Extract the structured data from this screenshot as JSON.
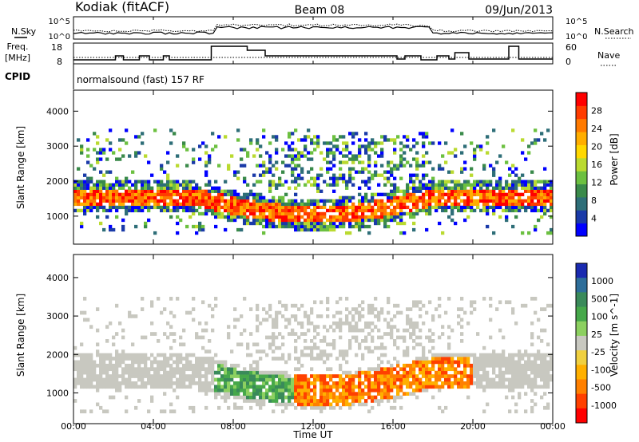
{
  "header": {
    "station": "Kodiak (fitACF)",
    "beam": "Beam 08",
    "date": "09/Jun/2013"
  },
  "top_panel": {
    "left_label": "N.Sky",
    "right_label": "N.Search",
    "left_ticks": [
      "10^5",
      "10^0"
    ],
    "right_ticks": [
      "10^5",
      "10^0"
    ]
  },
  "freq_panel": {
    "left_label_1": "Freq.",
    "left_label_2": "[MHz]",
    "right_label": "Nave",
    "left_ticks": [
      "18",
      "8"
    ],
    "right_ticks": [
      "60",
      "0"
    ]
  },
  "cpid_panel": {
    "label": "CPID",
    "text": "normalsound (fast) 157 RF"
  },
  "time_axis": {
    "ticks": [
      "00:00",
      "04:00",
      "08:00",
      "12:00",
      "16:00",
      "20:00",
      "00:00"
    ],
    "label": "Time UT"
  },
  "chart_data": [
    {
      "type": "heatmap",
      "name": "power",
      "ylabel": "Slant Range [km]",
      "yticks": [
        1000,
        2000,
        3000,
        4000
      ],
      "ylim": [
        200,
        4600
      ],
      "xlim_hours": [
        0,
        24
      ],
      "colorbar": {
        "label": "Power [dB]",
        "ticks": [
          "4",
          "8",
          "12",
          "16",
          "20",
          "24",
          "28"
        ],
        "colors": [
          "#0000ff",
          "#1a3aa8",
          "#2e6e78",
          "#3a8a4a",
          "#6cc040",
          "#bada30",
          "#ffd800",
          "#ffae00",
          "#ff7a00",
          "#ff3c00",
          "#ff0000"
        ]
      }
    },
    {
      "type": "heatmap",
      "name": "velocity",
      "ylabel": "Slant Range [km]",
      "yticks": [
        1000,
        2000,
        3000,
        4000
      ],
      "ylim": [
        200,
        4600
      ],
      "xlim_hours": [
        0,
        24
      ],
      "colorbar": {
        "label": "Velocity [m s^-1]",
        "ticks": [
          "1000",
          "500",
          "100",
          "25",
          "-25",
          "-100",
          "-500",
          "-1000"
        ],
        "colors": [
          "#1a2ab0",
          "#2e6e9a",
          "#3a8a5a",
          "#46a84a",
          "#8cd060",
          "#c8c8c0",
          "#f0d040",
          "#ffb000",
          "#ff8000",
          "#ff4000",
          "#ff0000"
        ]
      }
    }
  ],
  "colors": {
    "grey_range": "#c8c8c0",
    "ground_scatter": "#b8b8b0"
  }
}
